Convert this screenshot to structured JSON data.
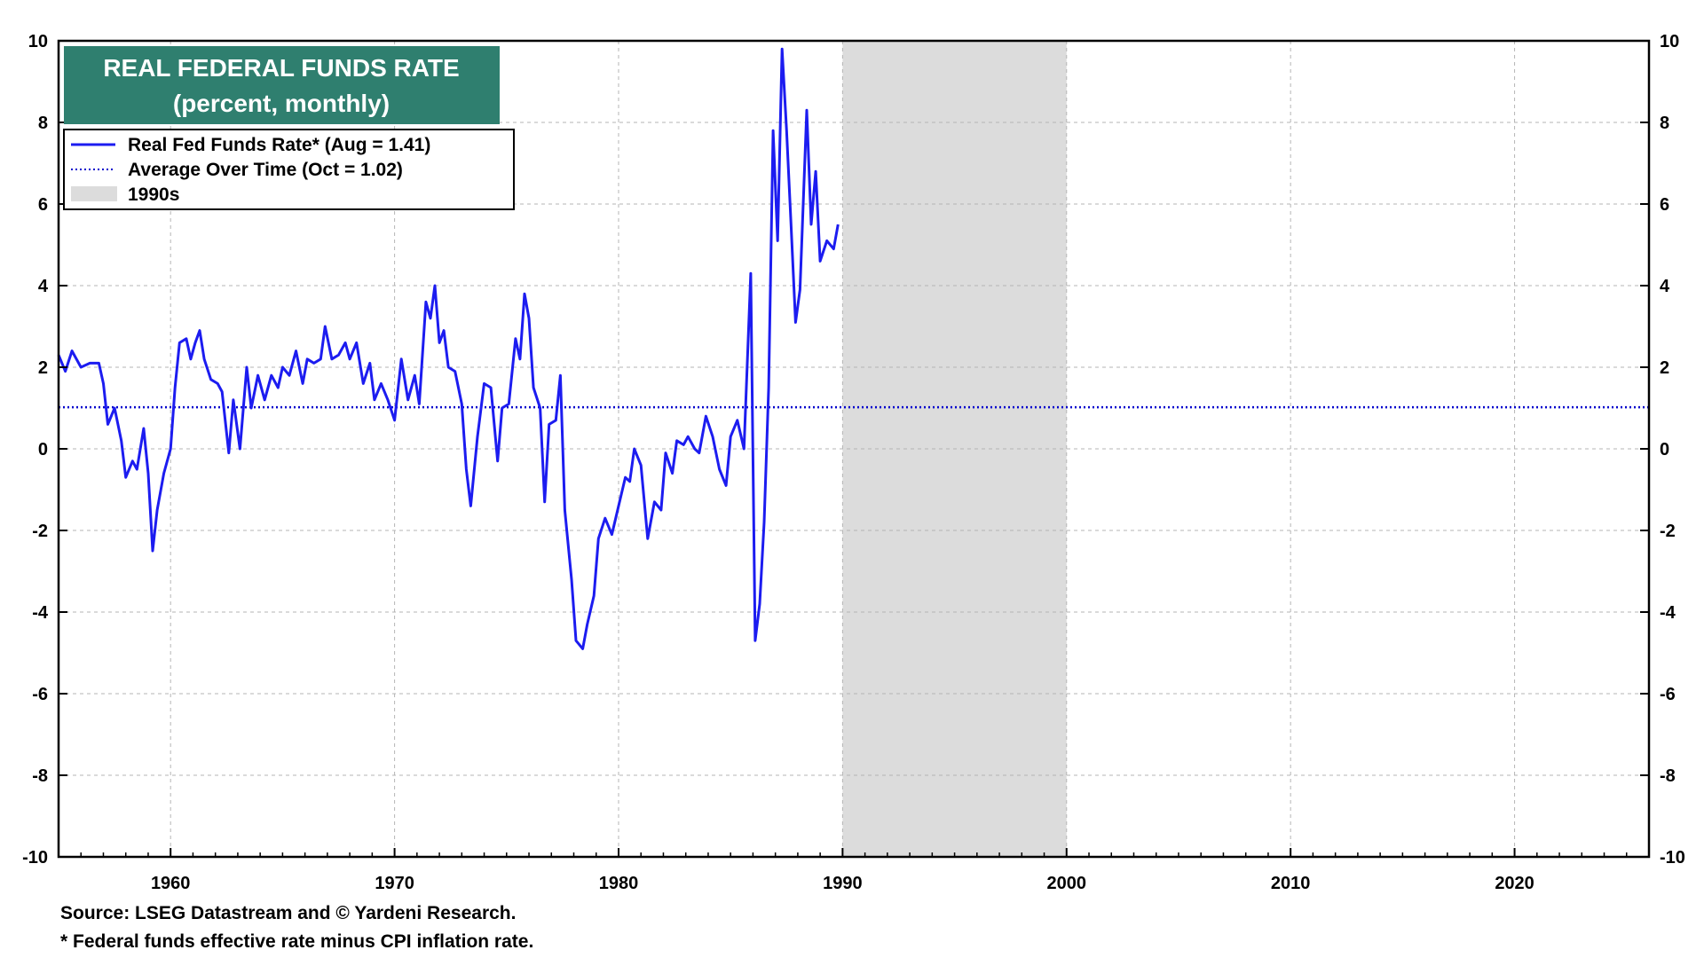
{
  "chart_data": {
    "type": "line",
    "title": "REAL FEDERAL FUNDS RATE",
    "subtitle": "(percent, monthly)",
    "xlim": [
      1955,
      2026
    ],
    "ylim": [
      -10,
      10
    ],
    "x_ticks": [
      1960,
      1970,
      1980,
      1990,
      2000,
      2010,
      2020
    ],
    "y_ticks": [
      -10,
      -8,
      -6,
      -4,
      -2,
      0,
      2,
      4,
      6,
      8,
      10
    ],
    "grid": true,
    "shaded_region": {
      "label": "1990s",
      "start": 1990,
      "end": 2000,
      "color": "#dcdcdc"
    },
    "average": {
      "label": "Average Over Time (Oct = 1.02)",
      "value": 1.02,
      "color": "#0000cc"
    },
    "series": [
      {
        "name": "Real Fed Funds Rate* (Aug = 1.41)",
        "color": "#1c1cf0",
        "points": [
          [
            1955.0,
            2.3
          ],
          [
            1955.3,
            1.9
          ],
          [
            1955.6,
            2.4
          ],
          [
            1956.0,
            2.0
          ],
          [
            1956.4,
            2.1
          ],
          [
            1956.8,
            2.1
          ],
          [
            1957.0,
            1.6
          ],
          [
            1957.2,
            0.6
          ],
          [
            1957.5,
            1.0
          ],
          [
            1957.8,
            0.2
          ],
          [
            1958.0,
            -0.7
          ],
          [
            1958.3,
            -0.3
          ],
          [
            1958.5,
            -0.5
          ],
          [
            1958.8,
            0.5
          ],
          [
            1959.0,
            -0.6
          ],
          [
            1959.2,
            -2.5
          ],
          [
            1959.4,
            -1.5
          ],
          [
            1959.7,
            -0.6
          ],
          [
            1960.0,
            0.0
          ],
          [
            1960.2,
            1.5
          ],
          [
            1960.4,
            2.6
          ],
          [
            1960.7,
            2.7
          ],
          [
            1960.9,
            2.2
          ],
          [
            1961.1,
            2.6
          ],
          [
            1961.3,
            2.9
          ],
          [
            1961.5,
            2.2
          ],
          [
            1961.8,
            1.7
          ],
          [
            1962.1,
            1.6
          ],
          [
            1962.3,
            1.4
          ],
          [
            1962.6,
            -0.1
          ],
          [
            1962.8,
            1.2
          ],
          [
            1963.1,
            0.0
          ],
          [
            1963.4,
            2.0
          ],
          [
            1963.6,
            1.0
          ],
          [
            1963.9,
            1.8
          ],
          [
            1964.2,
            1.2
          ],
          [
            1964.5,
            1.8
          ],
          [
            1964.8,
            1.5
          ],
          [
            1965.0,
            2.0
          ],
          [
            1965.3,
            1.8
          ],
          [
            1965.6,
            2.4
          ],
          [
            1965.9,
            1.6
          ],
          [
            1966.1,
            2.2
          ],
          [
            1966.4,
            2.1
          ],
          [
            1966.7,
            2.2
          ],
          [
            1966.9,
            3.0
          ],
          [
            1967.2,
            2.2
          ],
          [
            1967.5,
            2.3
          ],
          [
            1967.8,
            2.6
          ],
          [
            1968.0,
            2.2
          ],
          [
            1968.3,
            2.6
          ],
          [
            1968.6,
            1.6
          ],
          [
            1968.9,
            2.1
          ],
          [
            1969.1,
            1.2
          ],
          [
            1969.4,
            1.6
          ],
          [
            1969.7,
            1.2
          ],
          [
            1970.0,
            0.7
          ],
          [
            1970.3,
            2.2
          ],
          [
            1970.6,
            1.2
          ],
          [
            1970.9,
            1.8
          ],
          [
            1971.1,
            1.1
          ],
          [
            1971.4,
            3.6
          ],
          [
            1971.6,
            3.2
          ],
          [
            1971.8,
            4.0
          ],
          [
            1972.0,
            2.6
          ],
          [
            1972.2,
            2.9
          ],
          [
            1972.4,
            2.0
          ],
          [
            1972.7,
            1.9
          ],
          [
            1973.0,
            1.1
          ],
          [
            1973.2,
            -0.5
          ],
          [
            1973.4,
            -1.4
          ],
          [
            1973.7,
            0.3
          ],
          [
            1974.0,
            1.6
          ],
          [
            1974.3,
            1.5
          ],
          [
            1974.6,
            -0.3
          ],
          [
            1974.8,
            1.0
          ],
          [
            1975.1,
            1.1
          ],
          [
            1975.4,
            2.7
          ],
          [
            1975.6,
            2.2
          ],
          [
            1975.8,
            3.8
          ],
          [
            1976.0,
            3.2
          ],
          [
            1976.2,
            1.5
          ],
          [
            1976.5,
            1.0
          ],
          [
            1976.7,
            -1.3
          ],
          [
            1976.9,
            0.6
          ],
          [
            1977.2,
            0.7
          ],
          [
            1977.4,
            1.8
          ],
          [
            1977.6,
            -1.5
          ],
          [
            1977.9,
            -3.2
          ],
          [
            1978.1,
            -4.7
          ],
          [
            1978.4,
            -4.9
          ],
          [
            1978.6,
            -4.3
          ],
          [
            1978.9,
            -3.6
          ],
          [
            1979.1,
            -2.2
          ],
          [
            1979.4,
            -1.7
          ],
          [
            1979.7,
            -2.1
          ],
          [
            1980.0,
            -1.4
          ],
          [
            1980.3,
            -0.7
          ],
          [
            1980.5,
            -0.8
          ],
          [
            1980.7,
            0.0
          ],
          [
            1981.0,
            -0.4
          ],
          [
            1981.3,
            -2.2
          ],
          [
            1981.6,
            -1.3
          ],
          [
            1981.9,
            -1.5
          ],
          [
            1982.1,
            -0.1
          ],
          [
            1982.4,
            -0.6
          ],
          [
            1982.6,
            0.2
          ],
          [
            1982.9,
            0.1
          ],
          [
            1983.1,
            0.3
          ],
          [
            1983.4,
            0.0
          ],
          [
            1983.6,
            -0.1
          ],
          [
            1983.9,
            0.8
          ],
          [
            1984.2,
            0.3
          ],
          [
            1984.5,
            -0.5
          ],
          [
            1984.8,
            -0.9
          ],
          [
            1985.0,
            0.3
          ],
          [
            1985.3,
            0.7
          ],
          [
            1985.6,
            0.0
          ],
          [
            1985.9,
            4.3
          ],
          [
            1986.1,
            -4.7
          ],
          [
            1986.3,
            -3.8
          ],
          [
            1986.5,
            -1.8
          ],
          [
            1986.7,
            1.5
          ],
          [
            1986.9,
            7.8
          ],
          [
            1987.1,
            5.1
          ],
          [
            1987.3,
            9.8
          ],
          [
            1987.5,
            7.8
          ],
          [
            1987.7,
            5.5
          ],
          [
            1987.9,
            3.1
          ],
          [
            1988.1,
            3.9
          ],
          [
            1988.4,
            8.3
          ],
          [
            1988.6,
            5.5
          ],
          [
            1988.8,
            6.8
          ],
          [
            1989.0,
            4.6
          ],
          [
            1989.3,
            5.1
          ],
          [
            1989.6,
            4.9
          ],
          [
            1989.8,
            5.5
          ]
        ]
      }
    ]
  },
  "legend": {
    "items": [
      {
        "label": "Real Fed Funds Rate* (Aug = 1.41)"
      },
      {
        "label": "Average Over Time (Oct = 1.02)"
      },
      {
        "label": "1990s"
      }
    ]
  },
  "footer": {
    "source": "Source: LSEG Datastream and © Yardeni Research.",
    "note": "* Federal funds effective rate minus CPI inflation rate."
  },
  "colors": {
    "title_bg": "#2f7f6f",
    "line": "#1c1cf0",
    "average": "#0000cc",
    "shade": "#dcdcdc",
    "grid": "#b5b5b5"
  }
}
